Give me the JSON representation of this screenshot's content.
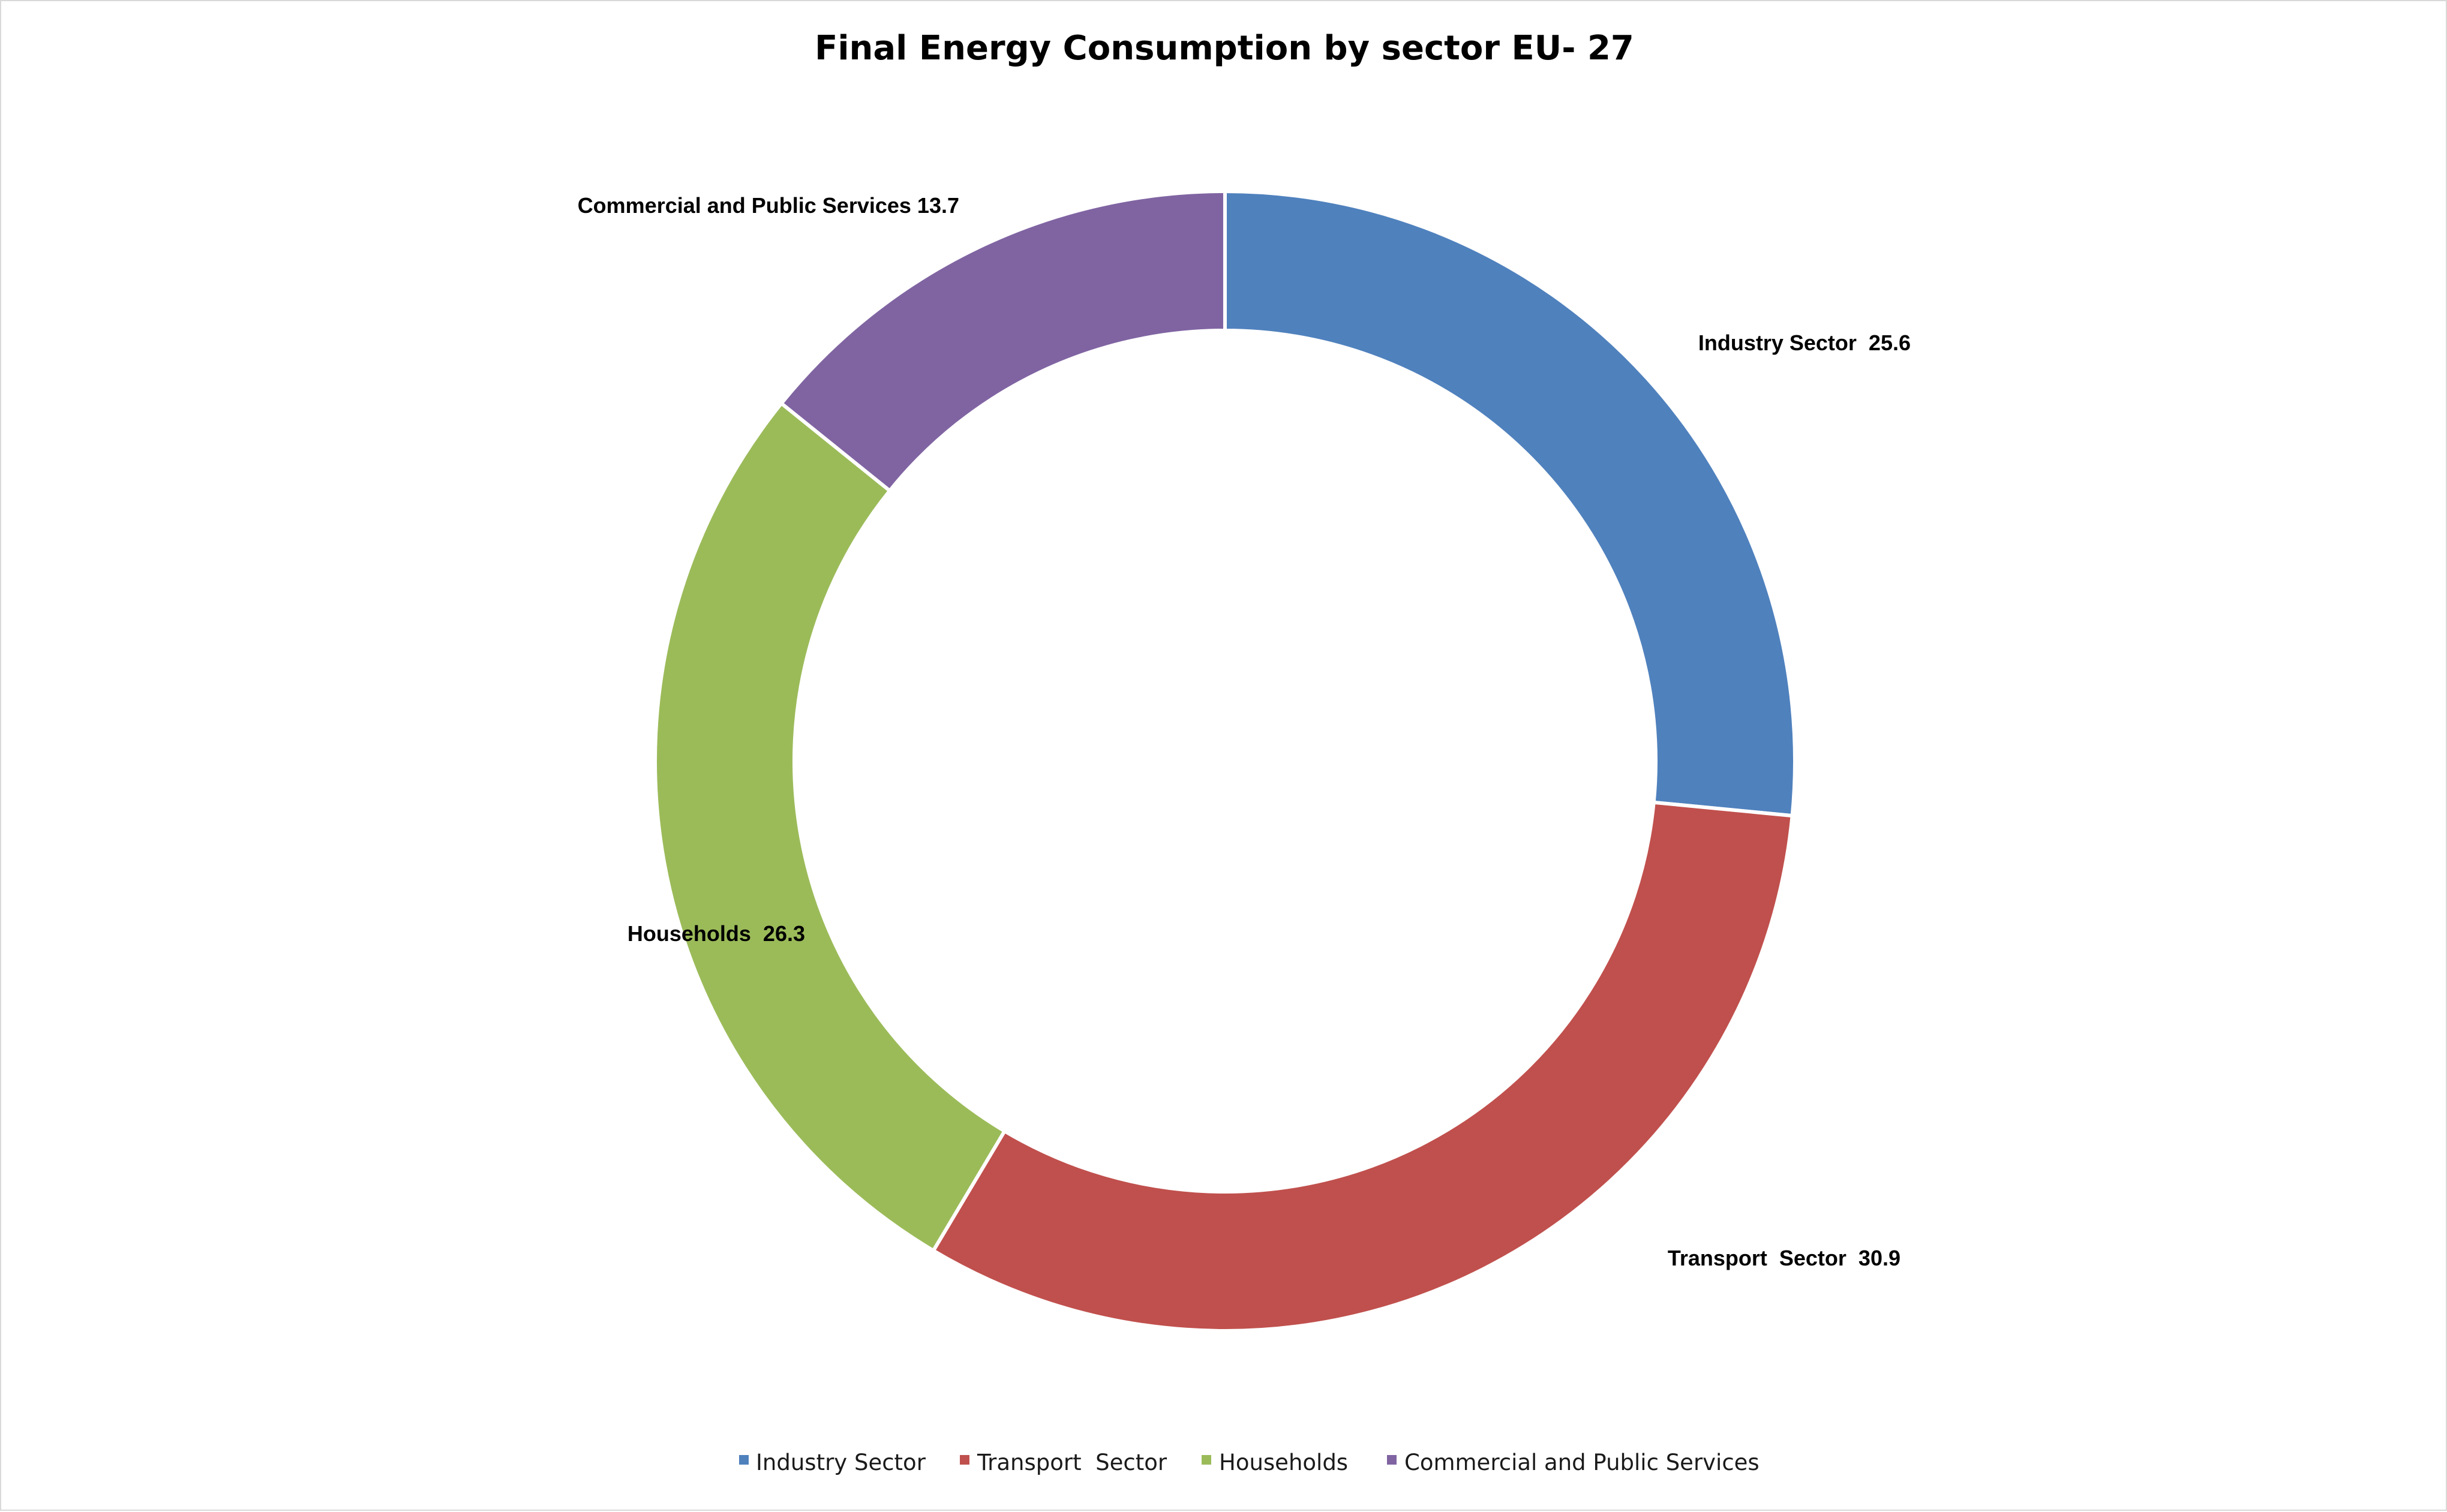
{
  "chart_data": {
    "type": "pie",
    "variant": "doughnut",
    "title": "Final Energy Consumption by sector EU- 27",
    "categories": [
      "Industry Sector",
      "Transport  Sector",
      "Households",
      "Commercial and Public Services"
    ],
    "values": [
      25.6,
      30.9,
      26.3,
      13.7
    ],
    "data_labels": [
      "Industry Sector  25.6",
      "Transport  Sector  30.9",
      "Households  26.3",
      "Commercial and Public Services 13.7"
    ],
    "colors": [
      "#4f81bd",
      "#c0504d",
      "#9bbb59",
      "#8064a2"
    ],
    "legend": {
      "position": "bottom",
      "entries": [
        "Industry Sector",
        "Transport  Sector",
        "Households",
        "Commercial and Public Services"
      ]
    }
  }
}
